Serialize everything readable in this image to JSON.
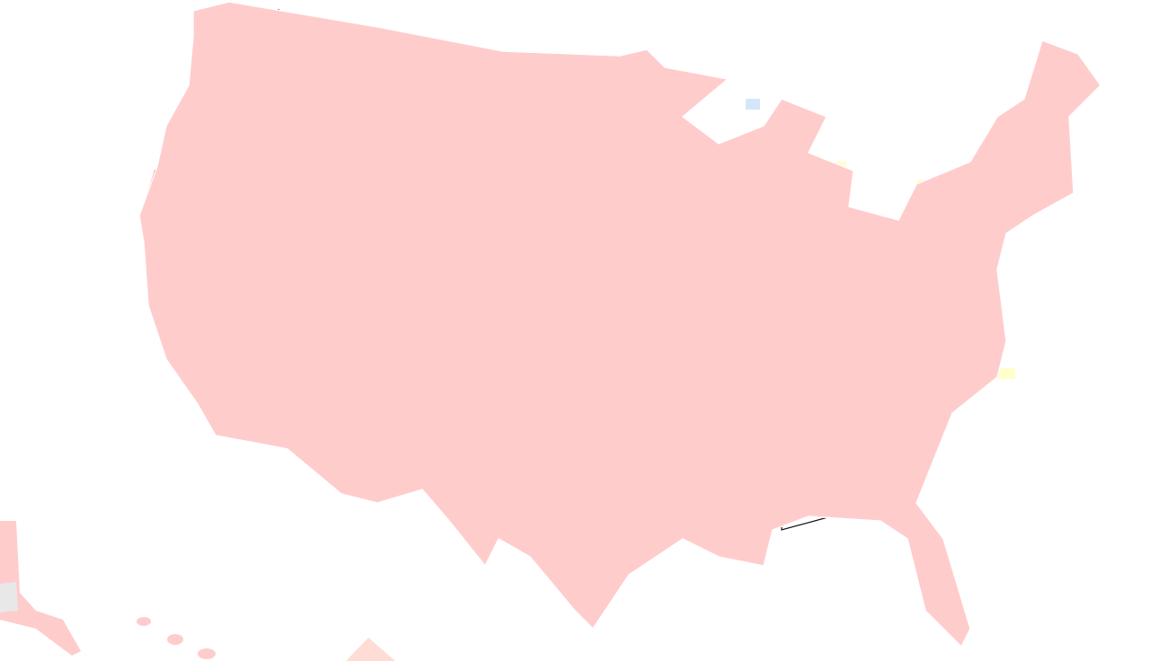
{
  "map": {
    "colors": {
      "background": "#ffffff",
      "base": "#ffcccc",
      "light": "#ffdcd4",
      "high": "#ff3333",
      "elevated": "#ff8050",
      "moderate": "#ffff44",
      "low_yellow": "#ffffcc",
      "low_blue": "#d4e6fa",
      "no_data": "#e8e8e8",
      "border": "#111111",
      "county_line": "#ffffff"
    },
    "icon": "map-of-united-states"
  }
}
